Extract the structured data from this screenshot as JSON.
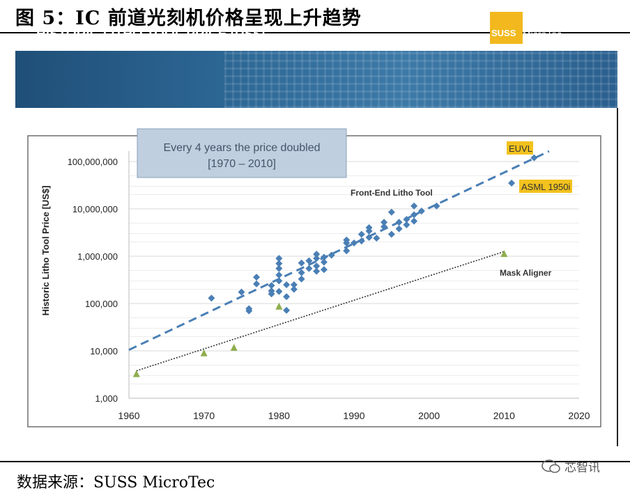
{
  "figure": {
    "title": "图 5：IC 前道光刻机价格呈现上升趋势",
    "source": "数据来源：SUSS MicroTec",
    "watermark": "芯智讯"
  },
  "banner": {
    "title": "HISTORIC LITHO TOOL PRICE [US$]",
    "logo_brand": "SUSS",
    "logo_name": "MicroTec",
    "logo_color": "#f2b81e",
    "background_color": "#2f6a98"
  },
  "chart_data": {
    "type": "scatter",
    "ylabel": "Historic Litho Tool Price [US$]",
    "y_scale": "log",
    "xlim": [
      1960,
      2020
    ],
    "ylim": [
      1000,
      200000000
    ],
    "x_ticks": [
      "1960",
      "1970",
      "1980",
      "1990",
      "2000",
      "2010",
      "2020"
    ],
    "y_ticks": [
      "1,000",
      "10,000",
      "100,000",
      "1,000,000",
      "10,000,000",
      "100,000,000"
    ],
    "grid": "horizontal",
    "annotation_box": {
      "line1": "Every 4 years the price doubled",
      "line2": "[1970 – 2010]"
    },
    "series": [
      {
        "name": "Front-End Litho Tool",
        "marker": "diamond",
        "color": "#4a7fb5",
        "points": [
          [
            1971,
            130000
          ],
          [
            1975,
            175000
          ],
          [
            1976,
            70000
          ],
          [
            1976,
            78000
          ],
          [
            1977,
            260000
          ],
          [
            1977,
            360000
          ],
          [
            1979,
            185000
          ],
          [
            1979,
            160000
          ],
          [
            1979,
            240000
          ],
          [
            1980,
            550000
          ],
          [
            1980,
            700000
          ],
          [
            1980,
            900000
          ],
          [
            1980,
            300000
          ],
          [
            1980,
            180000
          ],
          [
            1980,
            400000
          ],
          [
            1981,
            250000
          ],
          [
            1981,
            140000
          ],
          [
            1981,
            72000
          ],
          [
            1982,
            200000
          ],
          [
            1982,
            250000
          ],
          [
            1983,
            330000
          ],
          [
            1983,
            450000
          ],
          [
            1983,
            720000
          ],
          [
            1984,
            800000
          ],
          [
            1984,
            550000
          ],
          [
            1985,
            1100000
          ],
          [
            1985,
            900000
          ],
          [
            1985,
            620000
          ],
          [
            1985,
            480000
          ],
          [
            1986,
            520000
          ],
          [
            1986,
            750000
          ],
          [
            1986,
            950000
          ],
          [
            1987,
            1050000
          ],
          [
            1989,
            1300000
          ],
          [
            1989,
            1900000
          ],
          [
            1989,
            2200000
          ],
          [
            1990,
            1900000
          ],
          [
            1991,
            2900000
          ],
          [
            1991,
            2100000
          ],
          [
            1992,
            2500000
          ],
          [
            1992,
            3400000
          ],
          [
            1992,
            4000000
          ],
          [
            1993,
            2400000
          ],
          [
            1994,
            5200000
          ],
          [
            1994,
            4200000
          ],
          [
            1995,
            8500000
          ],
          [
            1995,
            2900000
          ],
          [
            1996,
            5200000
          ],
          [
            1996,
            3800000
          ],
          [
            1997,
            6000000
          ],
          [
            1997,
            4600000
          ],
          [
            1998,
            11500000
          ],
          [
            1998,
            7500000
          ],
          [
            1998,
            5500000
          ],
          [
            1999,
            9000000
          ],
          [
            2001,
            11500000
          ],
          [
            2011,
            35000000
          ],
          [
            2014,
            120000000
          ]
        ]
      },
      {
        "name": "Mask Aligner",
        "marker": "triangle",
        "color": "#8fae4e",
        "points": [
          [
            1961,
            3200
          ],
          [
            1970,
            8800
          ],
          [
            1974,
            11500
          ],
          [
            1980,
            85000
          ],
          [
            2010,
            1100000
          ]
        ]
      }
    ],
    "trendlines": [
      {
        "series": "Front-End Litho Tool",
        "style": "dashed",
        "color": "#4a7fb5",
        "from": [
          1960,
          10500
        ],
        "to": [
          2016,
          165000000
        ]
      },
      {
        "series": "Mask Aligner",
        "style": "dotted",
        "color": "#333333",
        "from": [
          1961,
          3800
        ],
        "to": [
          2010,
          1250000
        ]
      }
    ],
    "labels": [
      {
        "text": "Front-End Litho Tool"
      },
      {
        "text": "Mask Aligner"
      },
      {
        "text": "EUVL",
        "highlight": "#f2c21e"
      },
      {
        "text": "ASML 1950i",
        "highlight": "#f2c21e"
      }
    ]
  }
}
